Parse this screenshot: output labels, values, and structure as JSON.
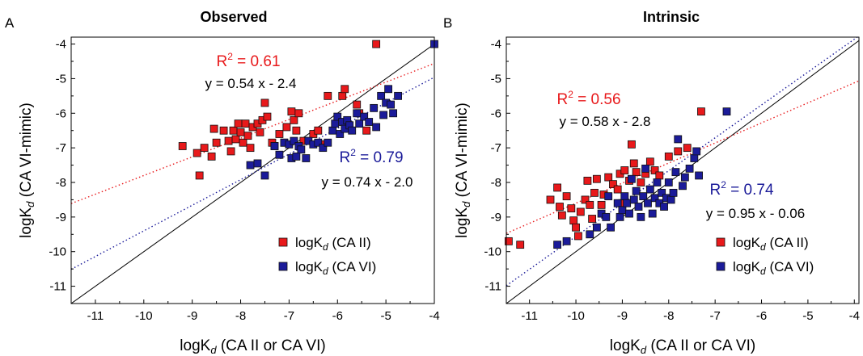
{
  "chart_data": [
    {
      "panel_label": "A",
      "title": "Observed",
      "type": "scatter",
      "xlabel": {
        "main": "logK",
        "sub": "d",
        "rest": " (CA II or CA VI)"
      },
      "ylabel": {
        "main": "logK",
        "sub": "d",
        "rest": " (CA VI-mimic)"
      },
      "xlim": [
        -11.5,
        -4
      ],
      "ylim": [
        -11.5,
        -3.8
      ],
      "xticks": [
        -11,
        -10,
        -9,
        -8,
        -7,
        -6,
        -5,
        -4
      ],
      "yticks": [
        -11,
        -10,
        -9,
        -8,
        -7,
        -6,
        -5,
        -4
      ],
      "grid": false,
      "legend_position": "bottom-right",
      "identity_line": true,
      "series": [
        {
          "name": {
            "main": "logK",
            "sub": "d",
            "rest": " (CA II)"
          },
          "color": "#e8191b",
          "fit": {
            "slope": 0.54,
            "intercept": -2.4
          },
          "r2_label": "R",
          "r2_sup": "2",
          "r2_value": " = 0.61",
          "equation": "y = 0.54 x - 2.4",
          "points": [
            [
              -9.2,
              -6.95
            ],
            [
              -8.9,
              -7.15
            ],
            [
              -8.85,
              -7.8
            ],
            [
              -8.75,
              -7.0
            ],
            [
              -8.6,
              -7.25
            ],
            [
              -8.55,
              -6.45
            ],
            [
              -8.5,
              -6.85
            ],
            [
              -8.35,
              -6.5
            ],
            [
              -8.25,
              -6.8
            ],
            [
              -8.2,
              -7.1
            ],
            [
              -8.15,
              -6.5
            ],
            [
              -8.1,
              -6.75
            ],
            [
              -8.05,
              -6.3
            ],
            [
              -8.0,
              -6.55
            ],
            [
              -7.95,
              -6.85
            ],
            [
              -7.9,
              -6.3
            ],
            [
              -7.85,
              -6.65
            ],
            [
              -7.8,
              -7.0
            ],
            [
              -7.75,
              -6.4
            ],
            [
              -7.65,
              -6.3
            ],
            [
              -7.6,
              -6.55
            ],
            [
              -7.55,
              -6.2
            ],
            [
              -7.5,
              -5.7
            ],
            [
              -7.45,
              -6.1
            ],
            [
              -7.35,
              -6.85
            ],
            [
              -7.3,
              -6.95
            ],
            [
              -7.2,
              -6.6
            ],
            [
              -7.1,
              -6.85
            ],
            [
              -7.05,
              -6.4
            ],
            [
              -6.95,
              -5.95
            ],
            [
              -6.9,
              -6.2
            ],
            [
              -6.85,
              -6.5
            ],
            [
              -6.8,
              -6.0
            ],
            [
              -6.7,
              -6.8
            ],
            [
              -6.5,
              -6.6
            ],
            [
              -6.4,
              -6.5
            ],
            [
              -6.3,
              -6.9
            ],
            [
              -6.2,
              -5.5
            ],
            [
              -5.9,
              -5.5
            ],
            [
              -5.85,
              -5.3
            ],
            [
              -5.6,
              -5.75
            ],
            [
              -5.55,
              -6.0
            ],
            [
              -5.4,
              -6.5
            ],
            [
              -5.2,
              -4.0
            ]
          ]
        },
        {
          "name": {
            "main": "logK",
            "sub": "d",
            "rest": " (CA VI)"
          },
          "color": "#1b1b99",
          "fit": {
            "slope": 0.74,
            "intercept": -2.0
          },
          "r2_label": "R",
          "r2_sup": "2",
          "r2_value": " = 0.79",
          "equation": "y = 0.74 x - 2.0",
          "points": [
            [
              -7.8,
              -7.5
            ],
            [
              -7.65,
              -7.45
            ],
            [
              -7.5,
              -7.8
            ],
            [
              -7.3,
              -6.95
            ],
            [
              -7.2,
              -7.2
            ],
            [
              -7.1,
              -6.85
            ],
            [
              -7.0,
              -6.9
            ],
            [
              -6.95,
              -7.3
            ],
            [
              -6.9,
              -6.8
            ],
            [
              -6.85,
              -7.25
            ],
            [
              -6.8,
              -6.95
            ],
            [
              -6.75,
              -7.05
            ],
            [
              -6.65,
              -7.3
            ],
            [
              -6.6,
              -6.8
            ],
            [
              -6.5,
              -6.9
            ],
            [
              -6.4,
              -6.85
            ],
            [
              -6.3,
              -7.0
            ],
            [
              -6.2,
              -6.85
            ],
            [
              -6.1,
              -6.5
            ],
            [
              -6.05,
              -6.3
            ],
            [
              -6.0,
              -6.1
            ],
            [
              -5.95,
              -6.6
            ],
            [
              -5.9,
              -6.25
            ],
            [
              -5.85,
              -6.45
            ],
            [
              -5.8,
              -6.2
            ],
            [
              -5.75,
              -6.35
            ],
            [
              -5.7,
              -6.5
            ],
            [
              -5.6,
              -6.0
            ],
            [
              -5.55,
              -6.3
            ],
            [
              -5.45,
              -6.1
            ],
            [
              -5.35,
              -6.25
            ],
            [
              -5.25,
              -5.85
            ],
            [
              -5.2,
              -6.4
            ],
            [
              -5.1,
              -5.5
            ],
            [
              -5.05,
              -6.05
            ],
            [
              -5.0,
              -5.7
            ],
            [
              -4.95,
              -5.3
            ],
            [
              -4.9,
              -5.75
            ],
            [
              -4.85,
              -6.0
            ],
            [
              -4.75,
              -5.5
            ],
            [
              -4.0,
              -4.0
            ]
          ]
        }
      ]
    },
    {
      "panel_label": "B",
      "title": "Intrinsic",
      "type": "scatter",
      "xlabel": {
        "main": "logK",
        "sub": "d",
        "rest": " (CA II or CA VI)"
      },
      "ylabel": {
        "main": "logK",
        "sub": "d",
        "rest": " (CA VI-mimic)"
      },
      "xlim": [
        -11.5,
        -3.9
      ],
      "ylim": [
        -11.5,
        -3.8
      ],
      "xticks": [
        -11,
        -10,
        -9,
        -8,
        -7,
        -6,
        -5,
        -4
      ],
      "yticks": [
        -11,
        -10,
        -9,
        -8,
        -7,
        -6,
        -5,
        -4
      ],
      "grid": false,
      "legend_position": "bottom-right",
      "identity_line": true,
      "series": [
        {
          "name": {
            "main": "logK",
            "sub": "d",
            "rest": " (CA II)"
          },
          "color": "#e8191b",
          "fit": {
            "slope": 0.58,
            "intercept": -2.8
          },
          "r2_label": "R",
          "r2_sup": "2",
          "r2_value": " = 0.56",
          "equation": "y = 0.58 x - 2.8",
          "points": [
            [
              -11.45,
              -9.7
            ],
            [
              -11.2,
              -9.8
            ],
            [
              -10.55,
              -8.5
            ],
            [
              -10.4,
              -8.15
            ],
            [
              -10.35,
              -8.7
            ],
            [
              -10.3,
              -8.95
            ],
            [
              -10.2,
              -8.4
            ],
            [
              -10.1,
              -8.75
            ],
            [
              -10.05,
              -9.1
            ],
            [
              -10.0,
              -9.3
            ],
            [
              -9.95,
              -9.55
            ],
            [
              -9.9,
              -8.85
            ],
            [
              -9.8,
              -8.5
            ],
            [
              -9.75,
              -7.95
            ],
            [
              -9.7,
              -8.65
            ],
            [
              -9.65,
              -9.05
            ],
            [
              -9.6,
              -8.3
            ],
            [
              -9.55,
              -7.9
            ],
            [
              -9.45,
              -8.65
            ],
            [
              -9.4,
              -8.35
            ],
            [
              -9.3,
              -7.85
            ],
            [
              -9.2,
              -8.05
            ],
            [
              -9.1,
              -8.2
            ],
            [
              -9.05,
              -7.75
            ],
            [
              -9.0,
              -8.6
            ],
            [
              -8.95,
              -7.65
            ],
            [
              -8.85,
              -7.95
            ],
            [
              -8.8,
              -6.9
            ],
            [
              -8.75,
              -7.45
            ],
            [
              -8.7,
              -7.7
            ],
            [
              -8.6,
              -8.0
            ],
            [
              -8.5,
              -7.75
            ],
            [
              -8.4,
              -7.4
            ],
            [
              -8.3,
              -7.65
            ],
            [
              -8.2,
              -7.8
            ],
            [
              -8.0,
              -7.25
            ],
            [
              -7.8,
              -7.1
            ],
            [
              -7.6,
              -7.0
            ],
            [
              -7.3,
              -5.95
            ]
          ]
        },
        {
          "name": {
            "main": "logK",
            "sub": "d",
            "rest": " (CA VI)"
          },
          "color": "#1b1b99",
          "fit": {
            "slope": 0.95,
            "intercept": -0.06
          },
          "r2_label": "R",
          "r2_sup": "2",
          "r2_value": " = 0.74",
          "equation": "y = 0.95 x - 0.06",
          "points": [
            [
              -10.4,
              -9.8
            ],
            [
              -10.2,
              -9.7
            ],
            [
              -9.7,
              -9.5
            ],
            [
              -9.55,
              -9.3
            ],
            [
              -9.45,
              -8.9
            ],
            [
              -9.35,
              -9.0
            ],
            [
              -9.3,
              -8.4
            ],
            [
              -9.25,
              -9.3
            ],
            [
              -9.1,
              -8.6
            ],
            [
              -9.05,
              -9.0
            ],
            [
              -9.0,
              -8.8
            ],
            [
              -8.95,
              -8.4
            ],
            [
              -8.9,
              -8.6
            ],
            [
              -8.85,
              -8.9
            ],
            [
              -8.8,
              -7.9
            ],
            [
              -8.75,
              -8.5
            ],
            [
              -8.7,
              -8.25
            ],
            [
              -8.65,
              -8.7
            ],
            [
              -8.6,
              -9.0
            ],
            [
              -8.55,
              -8.4
            ],
            [
              -8.5,
              -7.6
            ],
            [
              -8.45,
              -8.6
            ],
            [
              -8.4,
              -8.2
            ],
            [
              -8.35,
              -8.9
            ],
            [
              -8.3,
              -8.45
            ],
            [
              -8.25,
              -8.0
            ],
            [
              -8.2,
              -8.6
            ],
            [
              -8.15,
              -8.3
            ],
            [
              -8.1,
              -8.7
            ],
            [
              -8.05,
              -8.45
            ],
            [
              -8.0,
              -8.0
            ],
            [
              -7.95,
              -8.5
            ],
            [
              -7.9,
              -8.3
            ],
            [
              -7.85,
              -7.7
            ],
            [
              -7.8,
              -6.75
            ],
            [
              -7.7,
              -8.1
            ],
            [
              -7.65,
              -7.85
            ],
            [
              -7.55,
              -7.6
            ],
            [
              -7.45,
              -7.3
            ],
            [
              -7.4,
              -7.1
            ],
            [
              -7.35,
              -7.8
            ],
            [
              -6.75,
              -5.95
            ]
          ]
        }
      ]
    }
  ]
}
